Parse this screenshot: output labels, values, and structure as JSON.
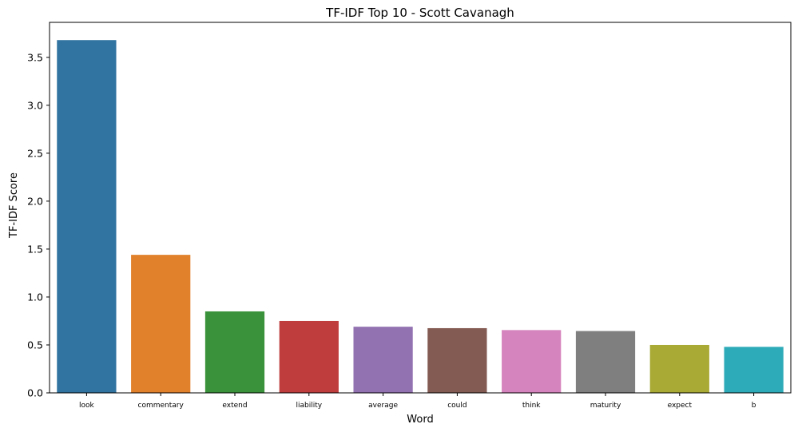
{
  "chart_data": {
    "type": "bar",
    "title": "TF-IDF Top 10 - Scott Cavanagh",
    "xlabel": "Word",
    "ylabel": "TF-IDF Score",
    "categories": [
      "look",
      "commentary",
      "extend",
      "liability",
      "average",
      "could",
      "think",
      "maturity",
      "expect",
      "b"
    ],
    "values": [
      3.68,
      1.44,
      0.85,
      0.75,
      0.69,
      0.675,
      0.655,
      0.645,
      0.5,
      0.48
    ],
    "colors": [
      "#3274a1",
      "#e1812c",
      "#3a923a",
      "#c03d3e",
      "#9372b2",
      "#845b53",
      "#d684bd",
      "#7f7f7f",
      "#a9aa35",
      "#2eabb8"
    ],
    "ylim": [
      0,
      3.865
    ],
    "yticks": [
      "0.0",
      "0.5",
      "1.0",
      "1.5",
      "2.0",
      "2.5",
      "3.0",
      "3.5"
    ],
    "grid": false,
    "legend": "none"
  }
}
